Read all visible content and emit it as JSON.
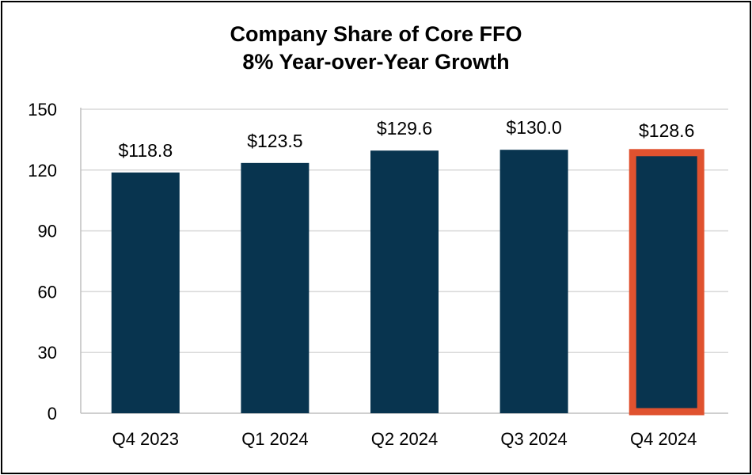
{
  "chart_data": {
    "type": "bar",
    "title": "Company Share of Core FFO",
    "subtitle": "8% Year-over-Year Growth",
    "categories": [
      "Q4 2023",
      "Q1 2024",
      "Q2 2024",
      "Q3 2024",
      "Q4 2024"
    ],
    "values": [
      118.8,
      123.5,
      129.6,
      130.0,
      128.6
    ],
    "data_labels": [
      "$118.8",
      "$123.5",
      "$129.6",
      "$130.0",
      "$128.6"
    ],
    "highlighted_category": "Q4 2024",
    "xlabel": "",
    "ylabel": "",
    "ylim": [
      0,
      150
    ],
    "yticks": [
      0,
      30,
      60,
      90,
      120,
      150
    ],
    "grid": true,
    "legend": "none",
    "colors": {
      "bar": "#08344F",
      "highlight_border": "#E0522F",
      "grid": "#D9D9D9"
    }
  }
}
